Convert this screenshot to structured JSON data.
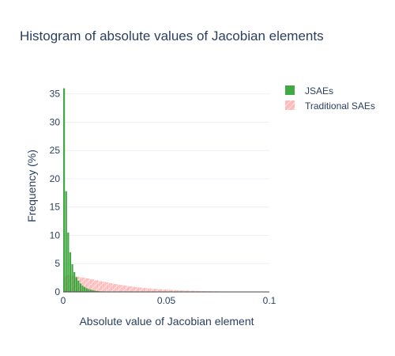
{
  "chart_data": {
    "type": "bar",
    "title": "Histogram of absolute values of Jacobian elements",
    "xlabel": "Absolute value of Jacobian element",
    "ylabel": "Frequency (%)",
    "xlim": [
      0,
      0.1
    ],
    "ylim": [
      0,
      36.5
    ],
    "x_ticks": [
      0,
      0.05,
      0.1
    ],
    "x_tick_labels": [
      "0",
      "0.05",
      "0.1"
    ],
    "y_ticks": [
      0,
      5,
      10,
      15,
      20,
      25,
      30,
      35
    ],
    "y_tick_labels": [
      "0",
      "5",
      "10",
      "15",
      "20",
      "25",
      "30",
      "35"
    ],
    "grid": true,
    "legend_position": "top-right",
    "bin_width": 0.001,
    "series": [
      {
        "name": "JSAEs",
        "color": "#2ca02c",
        "pattern": "solid",
        "bin_start": 0,
        "values": [
          36.0,
          17.8,
          10.5,
          7.0,
          4.9,
          3.5,
          2.6,
          2.0,
          1.5,
          1.1,
          0.85,
          0.65,
          0.5,
          0.4,
          0.3,
          0.22,
          0.16,
          0.12,
          0.09,
          0.07,
          0.05,
          0.04,
          0.03,
          0.02,
          0.02,
          0.01,
          0.01,
          0.01
        ]
      },
      {
        "name": "Traditional SAEs",
        "color": "#ff7f7f",
        "pattern": "hatched",
        "bin_start": 0,
        "values": [
          2.6,
          2.9,
          3.0,
          3.0,
          2.9,
          2.8,
          2.75,
          2.7,
          2.6,
          2.55,
          2.5,
          2.4,
          2.35,
          2.28,
          2.2,
          2.12,
          2.05,
          1.98,
          1.9,
          1.82,
          1.75,
          1.68,
          1.6,
          1.53,
          1.46,
          1.4,
          1.33,
          1.27,
          1.21,
          1.15,
          1.1,
          1.05,
          1.0,
          0.95,
          0.9,
          0.86,
          0.82,
          0.78,
          0.74,
          0.7,
          0.67,
          0.63,
          0.6,
          0.57,
          0.54,
          0.51,
          0.48,
          0.46,
          0.43,
          0.41,
          0.39,
          0.37,
          0.35,
          0.33,
          0.31,
          0.29,
          0.28,
          0.26,
          0.25,
          0.23,
          0.22,
          0.21,
          0.2,
          0.19,
          0.18,
          0.17,
          0.16,
          0.15,
          0.14,
          0.13,
          0.12,
          0.12,
          0.11,
          0.1,
          0.1,
          0.09,
          0.08,
          0.08,
          0.07,
          0.07,
          0.06,
          0.06,
          0.06,
          0.05,
          0.05,
          0.05,
          0.04,
          0.04,
          0.04,
          0.03,
          0.03,
          0.03,
          0.03,
          0.03,
          0.02,
          0.02,
          0.02,
          0.02,
          0.02,
          0.02
        ]
      }
    ]
  }
}
